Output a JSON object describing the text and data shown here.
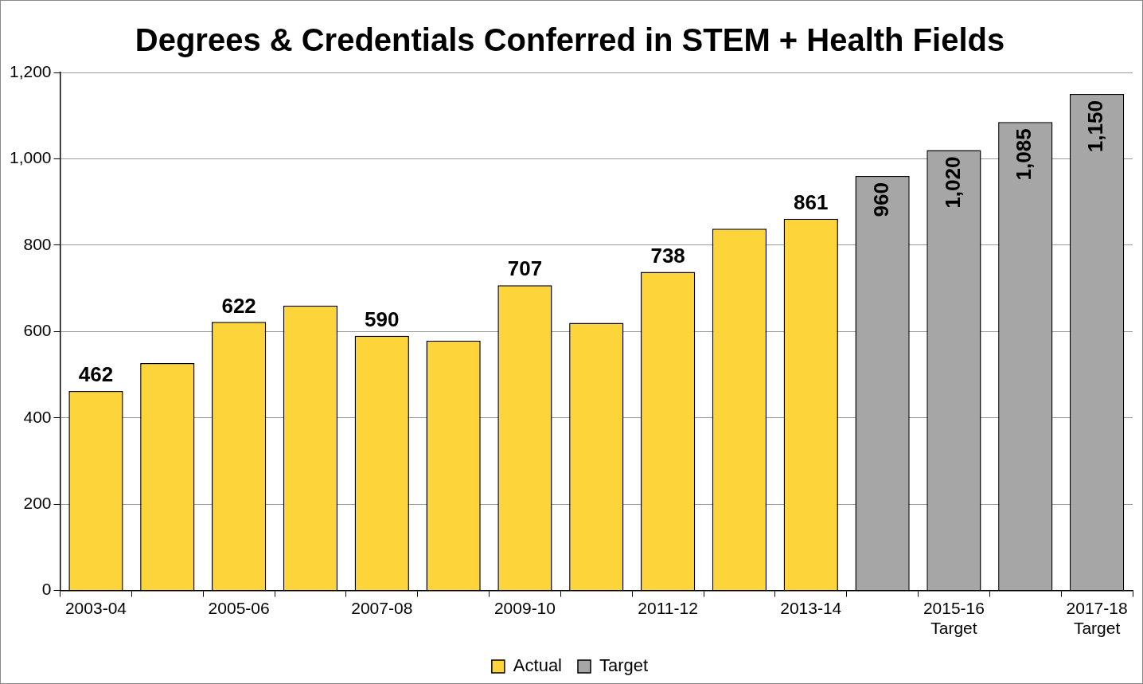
{
  "chart_data": {
    "type": "bar",
    "title": "Degrees & Credentials Conferred in STEM + Health Fields",
    "categories": [
      "2003-04",
      null,
      "2005-06",
      null,
      "2007-08",
      null,
      "2009-10",
      null,
      "2011-12",
      null,
      "2013-14",
      null,
      "2015-16\nTarget",
      null,
      "2017-18\nTarget"
    ],
    "series": [
      {
        "name": "Actual",
        "color": "#fdd53b",
        "values": [
          462,
          527,
          622,
          660,
          590,
          579,
          707,
          620,
          738,
          838,
          861,
          null,
          null,
          null,
          null
        ],
        "value_labels": [
          "462",
          null,
          "622",
          null,
          "590",
          null,
          "707",
          null,
          "738",
          null,
          "861",
          null,
          null,
          null,
          null
        ]
      },
      {
        "name": "Target",
        "color": "#a6a6a6",
        "values": [
          null,
          null,
          null,
          null,
          null,
          null,
          null,
          null,
          null,
          null,
          null,
          960,
          1020,
          1085,
          1150
        ],
        "value_labels": [
          null,
          null,
          null,
          null,
          null,
          null,
          null,
          null,
          null,
          null,
          null,
          "960",
          "1,020",
          "1,085",
          "1,150"
        ]
      }
    ],
    "ylim": [
      0,
      1200
    ],
    "yticks": [
      0,
      200,
      400,
      600,
      800,
      {
        "value": 1000,
        "label": "1,000"
      },
      {
        "value": 1200,
        "label": "1,200"
      }
    ],
    "grid": "y",
    "legend": "bottom"
  }
}
